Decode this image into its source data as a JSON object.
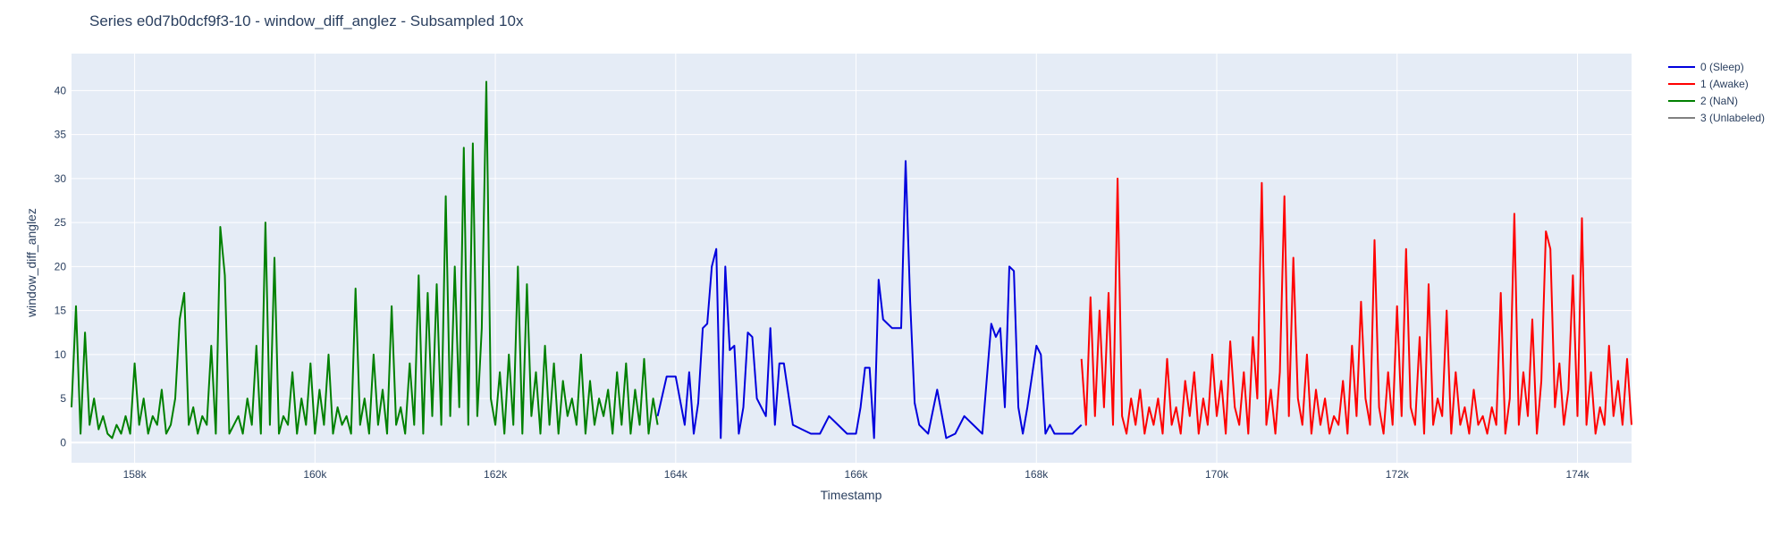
{
  "chart_data": {
    "type": "line",
    "title": "Series e0d7b0dcf9f3-10 - window_diff_anglez - Subsampled 10x",
    "xlabel": "Timestamp",
    "ylabel": "window_diff_anglez",
    "xlim": [
      157300,
      174600
    ],
    "ylim": [
      -2.3,
      44.2
    ],
    "x_ticks": [
      158000,
      160000,
      162000,
      164000,
      166000,
      168000,
      170000,
      172000,
      174000
    ],
    "x_tick_labels": [
      "158k",
      "160k",
      "162k",
      "164k",
      "166k",
      "168k",
      "170k",
      "172k",
      "174k"
    ],
    "y_ticks": [
      0,
      5,
      10,
      15,
      20,
      25,
      30,
      35,
      40
    ],
    "y_tick_labels": [
      "0",
      "5",
      "10",
      "15",
      "20",
      "25",
      "30",
      "35",
      "40"
    ],
    "grid": true,
    "legend_position": "right",
    "colors": {
      "plot_bg": "#e5ecf6",
      "grid": "#ffffff",
      "text": "#2a3f5f"
    },
    "legend": [
      {
        "label": "0 (Sleep)",
        "color": "#0000dd"
      },
      {
        "label": "1 (Awake)",
        "color": "#ff0000"
      },
      {
        "label": "2 (NaN)",
        "color": "#008000"
      },
      {
        "label": "3 (Unlabeled)",
        "color": "#808080"
      }
    ],
    "series": [
      {
        "name": "2 (NaN)",
        "color": "#008000",
        "x": [
          157300,
          157350,
          157400,
          157450,
          157500,
          157550,
          157600,
          157650,
          157700,
          157750,
          157800,
          157850,
          157900,
          157950,
          158000,
          158050,
          158100,
          158150,
          158200,
          158250,
          158300,
          158350,
          158400,
          158450,
          158500,
          158550,
          158600,
          158650,
          158700,
          158750,
          158800,
          158850,
          158900,
          158950,
          159000,
          159050,
          159100,
          159150,
          159200,
          159250,
          159300,
          159350,
          159400,
          159450,
          159500,
          159550,
          159600,
          159650,
          159700,
          159750,
          159800,
          159850,
          159900,
          159950,
          160000,
          160050,
          160100,
          160150,
          160200,
          160250,
          160300,
          160350,
          160400,
          160450,
          160500,
          160550,
          160600,
          160650,
          160700,
          160750,
          160800,
          160850,
          160900,
          160950,
          161000,
          161050,
          161100,
          161150,
          161200,
          161250,
          161300,
          161350,
          161400,
          161450,
          161500,
          161550,
          161600,
          161650,
          161700,
          161750,
          161800,
          161850,
          161900,
          161950,
          162000,
          162050,
          162100,
          162150,
          162200,
          162250,
          162300,
          162350,
          162400,
          162450,
          162500,
          162550,
          162600,
          162650,
          162700,
          162750,
          162800,
          162850,
          162900,
          162950,
          163000,
          163050,
          163100,
          163150,
          163200,
          163250,
          163300,
          163350,
          163400,
          163450,
          163500,
          163550,
          163600,
          163650,
          163700,
          163750,
          163800
        ],
        "y": [
          4,
          15.5,
          1,
          12.5,
          2,
          5,
          1.5,
          3,
          1,
          0.5,
          2,
          1,
          3,
          1,
          9,
          2,
          5,
          1,
          3,
          2,
          6,
          1,
          2,
          5,
          14,
          17,
          2,
          4,
          1,
          3,
          2,
          11,
          1,
          24.5,
          19,
          1,
          2,
          3,
          1,
          5,
          2,
          11,
          1,
          25,
          2,
          21,
          1,
          3,
          2,
          8,
          1,
          5,
          2,
          9,
          1,
          6,
          2,
          10,
          1,
          4,
          2,
          3,
          1,
          17.5,
          2,
          5,
          1,
          10,
          2,
          6,
          1,
          15.5,
          2,
          4,
          1,
          9,
          2,
          19,
          1,
          17,
          3,
          18,
          2,
          28,
          3,
          20,
          4,
          33.5,
          2,
          34,
          3,
          13,
          41,
          5,
          2,
          8,
          1,
          10,
          2,
          20,
          1,
          18,
          3,
          8,
          1,
          11,
          2,
          9,
          1,
          7,
          3,
          5,
          2,
          10,
          1,
          7,
          2,
          5,
          3,
          6,
          1,
          8,
          2,
          9,
          1,
          6,
          2,
          9.5,
          1,
          5,
          2
        ]
      },
      {
        "name": "0 (Sleep)",
        "color": "#0000dd",
        "x": [
          163800,
          163900,
          164000,
          164100,
          164150,
          164200,
          164250,
          164300,
          164350,
          164400,
          164450,
          164500,
          164550,
          164600,
          164650,
          164700,
          164750,
          164800,
          164850,
          164900,
          164950,
          165000,
          165050,
          165100,
          165150,
          165200,
          165300,
          165400,
          165500,
          165600,
          165700,
          165800,
          165900,
          166000,
          166050,
          166100,
          166150,
          166200,
          166250,
          166300,
          166350,
          166400,
          166450,
          166500,
          166550,
          166600,
          166650,
          166700,
          166800,
          166900,
          167000,
          167100,
          167200,
          167300,
          167400,
          167500,
          167550,
          167600,
          167650,
          167700,
          167750,
          167800,
          167850,
          167900,
          168000,
          168050,
          168100,
          168150,
          168200,
          168300,
          168400,
          168500
        ],
        "y": [
          3,
          7.5,
          7.5,
          2,
          8,
          1,
          4.5,
          13,
          13.5,
          20,
          22,
          0.5,
          20,
          10.5,
          11,
          1,
          4,
          12.5,
          12,
          5,
          4,
          3,
          13,
          2,
          9,
          9,
          2,
          1.5,
          1,
          1,
          3,
          2,
          1,
          1,
          4,
          8.5,
          8.5,
          0.5,
          18.5,
          14,
          13.5,
          13,
          13,
          13,
          32,
          16,
          4.5,
          2,
          1,
          6,
          0.5,
          1,
          3,
          2,
          1,
          13.5,
          12,
          13,
          4,
          20,
          19.5,
          4,
          1,
          4,
          11,
          10,
          1,
          2,
          1,
          1,
          1,
          2
        ]
      },
      {
        "name": "1 (Awake)",
        "color": "#ff0000",
        "x": [
          168500,
          168550,
          168600,
          168650,
          168700,
          168750,
          168800,
          168850,
          168900,
          168950,
          169000,
          169050,
          169100,
          169150,
          169200,
          169250,
          169300,
          169350,
          169400,
          169450,
          169500,
          169550,
          169600,
          169650,
          169700,
          169750,
          169800,
          169850,
          169900,
          169950,
          170000,
          170050,
          170100,
          170150,
          170200,
          170250,
          170300,
          170350,
          170400,
          170450,
          170500,
          170550,
          170600,
          170650,
          170700,
          170750,
          170800,
          170850,
          170900,
          170950,
          171000,
          171050,
          171100,
          171150,
          171200,
          171250,
          171300,
          171350,
          171400,
          171450,
          171500,
          171550,
          171600,
          171650,
          171700,
          171750,
          171800,
          171850,
          171900,
          171950,
          172000,
          172050,
          172100,
          172150,
          172200,
          172250,
          172300,
          172350,
          172400,
          172450,
          172500,
          172550,
          172600,
          172650,
          172700,
          172750,
          172800,
          172850,
          172900,
          172950,
          173000,
          173050,
          173100,
          173150,
          173200,
          173250,
          173300,
          173350,
          173400,
          173450,
          173500,
          173550,
          173600,
          173650,
          173700,
          173750,
          173800,
          173850,
          173900,
          173950,
          174000,
          174050,
          174100,
          174150,
          174200,
          174250,
          174300,
          174350,
          174400,
          174450,
          174500,
          174550,
          174600
        ],
        "y": [
          9.5,
          2,
          16.5,
          3,
          15,
          4,
          17,
          2,
          30,
          3,
          1,
          5,
          2,
          6,
          1,
          4,
          2,
          5,
          1,
          9.5,
          2,
          4,
          1,
          7,
          3,
          8,
          1,
          5,
          2,
          10,
          3,
          7,
          1,
          11.5,
          4,
          2,
          8,
          1,
          12,
          5,
          29.5,
          2,
          6,
          1,
          8,
          28,
          3,
          21,
          5,
          2,
          10,
          1,
          6,
          2,
          5,
          1,
          3,
          2,
          7,
          1,
          11,
          3,
          16,
          5,
          2,
          23,
          4,
          1,
          8,
          2,
          15.5,
          3,
          22,
          4,
          2,
          12,
          1,
          18,
          2,
          5,
          3,
          15,
          1,
          8,
          2,
          4,
          1,
          6,
          2,
          3,
          1,
          4,
          2,
          17,
          1,
          5,
          26,
          2,
          8,
          3,
          14,
          1,
          7,
          24,
          22,
          4,
          9,
          2,
          6,
          19,
          3,
          25.5,
          2,
          8,
          1,
          4,
          2,
          11,
          3,
          7,
          2,
          9.5,
          2
        ]
      }
    ]
  }
}
